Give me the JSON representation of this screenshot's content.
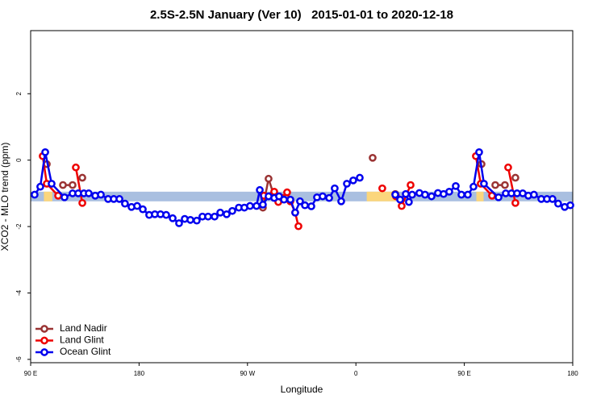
{
  "chart_data": {
    "type": "line",
    "title": "2.5S-2.5N January (Ver 10)   2015-01-01 to 2020-12-18",
    "xlabel": "Longitude",
    "ylabel": "XCO2 - MLO trend (ppm)",
    "xlim": [
      90,
      540
    ],
    "ylim": [
      -6.1,
      3.9
    ],
    "xticks": [
      {
        "value": 90,
        "label": "90 E"
      },
      180,
      {
        "value": 270,
        "label": "90 W"
      },
      {
        "value": 360,
        "label": "0"
      },
      {
        "value": 450,
        "label": "90 E"
      },
      {
        "value": 540,
        "label": "180"
      }
    ],
    "yticks": [
      2,
      0,
      -2,
      -4,
      -6
    ],
    "band": {
      "ylim": [
        -1.24,
        -0.95
      ],
      "color": "#a9bfe0"
    },
    "land_spans": {
      "color": "#fbd67c",
      "spans": [
        [
          101,
          108
        ],
        [
          369,
          393
        ],
        [
          460,
          466
        ]
      ]
    },
    "legend": "bottom-left",
    "series": [
      {
        "name": "Land Nadir",
        "color": "#9a3333",
        "x": [
          103.4,
          null,
          116.8,
          124.8,
          null,
          132.9,
          null,
          282.8,
          287.5,
          292.2,
          296.9,
          null,
          373.9,
          null,
          392.7,
          null,
          464.3,
          null,
          475.7,
          483.7,
          null,
          492.4
        ],
        "values": [
          -0.12,
          null,
          -0.75,
          -0.75,
          null,
          -0.53,
          null,
          -1.43,
          -0.56,
          -1.09,
          -1.14,
          null,
          0.07,
          null,
          -1.02,
          null,
          -0.12,
          null,
          -0.75,
          -0.75,
          null,
          -0.53
        ]
      },
      {
        "name": "Land Glint",
        "color": "#ee0000",
        "x": [
          100.0,
          103.4,
          112.8,
          null,
          127.5,
          132.9,
          null,
          283.5,
          292.2,
          295.6,
          298.9,
          302.9,
          305.6,
          309.6,
          312.3,
          null,
          381.9,
          null,
          393.3,
          398.0,
          405.4,
          null,
          459.6,
          463.6,
          473.0,
          null,
          486.4,
          492.4
        ],
        "values": [
          0.12,
          -0.71,
          -1.07,
          null,
          -0.22,
          -1.29,
          null,
          -1.07,
          -0.95,
          -1.26,
          -1.14,
          -0.97,
          -1.24,
          -1.58,
          -1.99,
          null,
          -0.85,
          null,
          -1.09,
          -1.38,
          -0.75,
          null,
          0.12,
          -0.71,
          -1.07,
          null,
          -0.22,
          -1.29
        ]
      },
      {
        "name": "Ocean Glint",
        "color": "#0000ee",
        "x": [
          93.3,
          98.0,
          102.1,
          107.4,
          118.1,
          124.8,
          129.5,
          134.2,
          138.2,
          143.6,
          148.3,
          154.3,
          159.0,
          163.7,
          168.3,
          173.7,
          178.4,
          183.1,
          188.4,
          193.1,
          197.8,
          202.5,
          207.9,
          213.2,
          217.9,
          222.6,
          227.9,
          232.6,
          237.3,
          242.7,
          247.4,
          252.7,
          257.4,
          262.8,
          267.4,
          272.1,
          277.5,
          280.2,
          282.8,
          287.5,
          292.2,
          296.2,
          300.3,
          305.6,
          309.6,
          313.6,
          317.7,
          323.0,
          327.7,
          332.4,
          337.8,
          342.4,
          347.8,
          352.5,
          357.8,
          363.2,
          null,
          392.7,
          396.7,
          401.4,
          404.0,
          406.7,
          412.7,
          417.4,
          422.8,
          428.1,
          432.8,
          437.5,
          442.9,
          447.6,
          452.9,
          457.6,
          462.3,
          466.3,
          478.4,
          484.4,
          489.1,
          493.8,
          498.5,
          503.1,
          507.8,
          513.9,
          518.6,
          523.2,
          527.9,
          533.3,
          538.0
        ],
        "values": [
          -1.04,
          -0.8,
          0.24,
          -0.71,
          -1.12,
          -1.0,
          -1.0,
          -1.0,
          -1.0,
          -1.07,
          -1.04,
          -1.17,
          -1.17,
          -1.17,
          -1.31,
          -1.41,
          -1.38,
          -1.48,
          -1.65,
          -1.63,
          -1.63,
          -1.65,
          -1.75,
          -1.9,
          -1.77,
          -1.8,
          -1.82,
          -1.7,
          -1.7,
          -1.7,
          -1.58,
          -1.63,
          -1.53,
          -1.43,
          -1.43,
          -1.38,
          -1.38,
          -0.9,
          -1.34,
          -1.09,
          -1.14,
          -1.09,
          -1.19,
          -1.19,
          -1.58,
          -1.24,
          -1.36,
          -1.39,
          -1.12,
          -1.09,
          -1.14,
          -0.85,
          -1.24,
          -0.71,
          -0.61,
          -0.53,
          null,
          -1.04,
          -1.19,
          -1.02,
          -1.26,
          -1.04,
          -0.99,
          -1.04,
          -1.09,
          -0.99,
          -1.02,
          -0.95,
          -0.78,
          -1.04,
          -1.04,
          -0.8,
          0.24,
          -0.71,
          -1.12,
          -1.0,
          -1.0,
          -1.0,
          -1.0,
          -1.07,
          -1.04,
          -1.17,
          -1.17,
          -1.17,
          -1.31,
          -1.41,
          -1.36
        ]
      }
    ]
  }
}
